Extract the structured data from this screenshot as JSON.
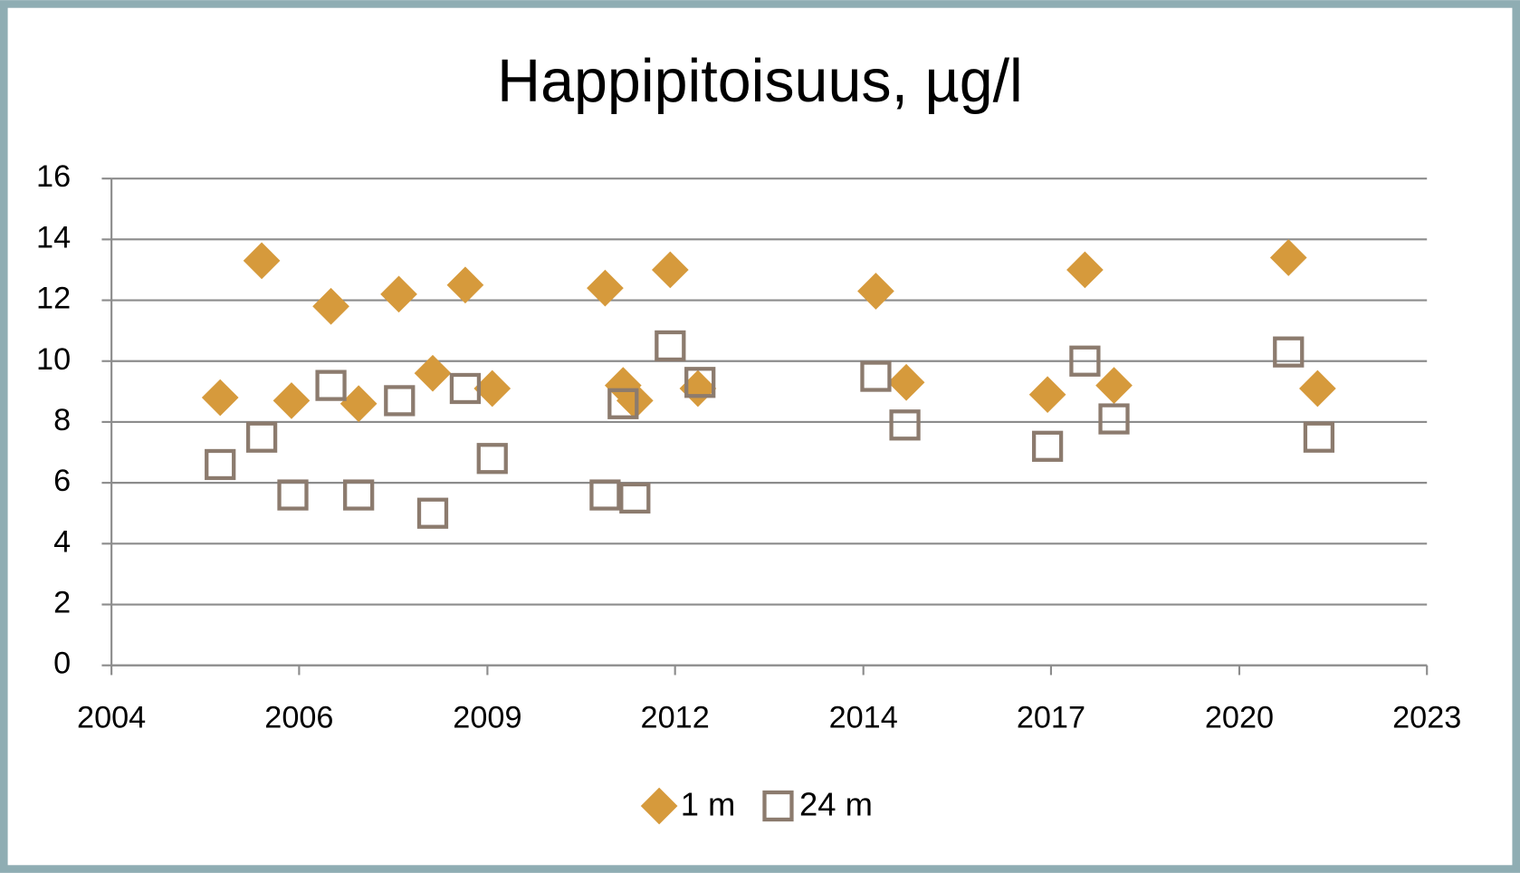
{
  "chart_data": {
    "type": "scatter",
    "title": "Happipitoisuus, µg/l",
    "xlim": [
      2004,
      2023
    ],
    "xticks": [
      2004,
      {
        "value": 2006.71,
        "label": "2006"
      },
      {
        "value": 2009.43,
        "label": "2009"
      },
      {
        "value": 2012.14,
        "label": "2012"
      },
      {
        "value": 2014.86,
        "label": "2014"
      },
      {
        "value": 2017.57,
        "label": "2017"
      },
      {
        "value": 2020.29,
        "label": "2020"
      },
      2023
    ],
    "ylim": [
      0,
      16
    ],
    "yticks": [
      0,
      2,
      4,
      6,
      8,
      10,
      12,
      14,
      16
    ],
    "grid": true,
    "legend": "bottom",
    "series": [
      {
        "name": "1 m",
        "color": "#d69a3c",
        "marker": "diamond",
        "x": [
          2005.57,
          2006.17,
          2006.6,
          2007.17,
          2007.57,
          2008.15,
          2008.64,
          2009.11,
          2009.5,
          2011.13,
          2011.39,
          2011.56,
          2012.07,
          2012.47,
          2015.04,
          2015.48,
          2017.52,
          2018.06,
          2018.48,
          2021.0,
          2021.42
        ],
        "values": [
          8.8,
          13.3,
          8.7,
          11.8,
          8.6,
          12.2,
          9.6,
          12.5,
          9.1,
          12.4,
          9.2,
          8.7,
          13.0,
          9.1,
          12.3,
          9.3,
          8.9,
          13.0,
          9.2,
          13.4,
          9.1
        ]
      },
      {
        "name": "24 m",
        "color": "#8c7b6e",
        "marker": "square",
        "x": [
          2005.57,
          2006.17,
          2006.62,
          2007.17,
          2007.57,
          2008.16,
          2008.64,
          2009.11,
          2009.5,
          2011.13,
          2011.39,
          2011.56,
          2012.07,
          2012.5,
          2015.04,
          2015.46,
          2017.52,
          2018.06,
          2018.48,
          2021.0,
          2021.44
        ],
        "values": [
          6.6,
          7.5,
          5.6,
          9.2,
          5.6,
          8.7,
          5.0,
          9.1,
          6.8,
          5.6,
          8.6,
          5.5,
          10.5,
          9.3,
          9.5,
          7.9,
          7.2,
          10.0,
          8.1,
          10.3,
          7.5
        ]
      }
    ]
  }
}
